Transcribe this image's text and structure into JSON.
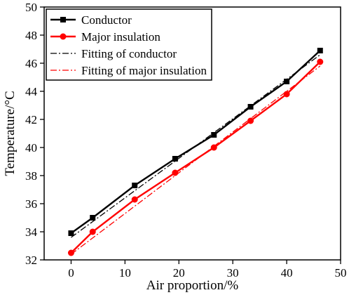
{
  "chart_data": {
    "type": "line",
    "xlabel": "Air proportion/%",
    "ylabel": "Temperature/°C",
    "xlim": [
      -5,
      50
    ],
    "ylim": [
      32,
      50
    ],
    "xticks": [
      0,
      10,
      20,
      30,
      40,
      50
    ],
    "yticks": [
      32,
      34,
      36,
      38,
      40,
      42,
      44,
      46,
      48,
      50
    ],
    "grid": false,
    "legend_position": "top-left",
    "series": [
      {
        "name": "Conductor",
        "kind": "data",
        "marker": "square",
        "color": "#000000",
        "x": [
          0,
          4,
          11.8,
          19.3,
          26.5,
          33.3,
          40,
          46.2
        ],
        "y": [
          33.9,
          35.0,
          37.3,
          39.2,
          40.9,
          42.9,
          44.7,
          46.9
        ]
      },
      {
        "name": "Major insulation",
        "kind": "data",
        "marker": "circle",
        "color": "#ff0000",
        "x": [
          0,
          4,
          11.8,
          19.3,
          26.5,
          33.3,
          40,
          46.2
        ],
        "y": [
          32.5,
          34.0,
          36.3,
          38.2,
          40.0,
          41.9,
          43.8,
          46.1
        ]
      },
      {
        "name": "Fitting of conductor",
        "kind": "fit",
        "color": "#000000",
        "x": [
          0,
          46.2
        ],
        "y": [
          33.6,
          46.6
        ]
      },
      {
        "name": "Fitting of major insulation",
        "kind": "fit",
        "color": "#ff0000",
        "x": [
          0,
          46.2
        ],
        "y": [
          32.4,
          45.8
        ]
      }
    ]
  }
}
